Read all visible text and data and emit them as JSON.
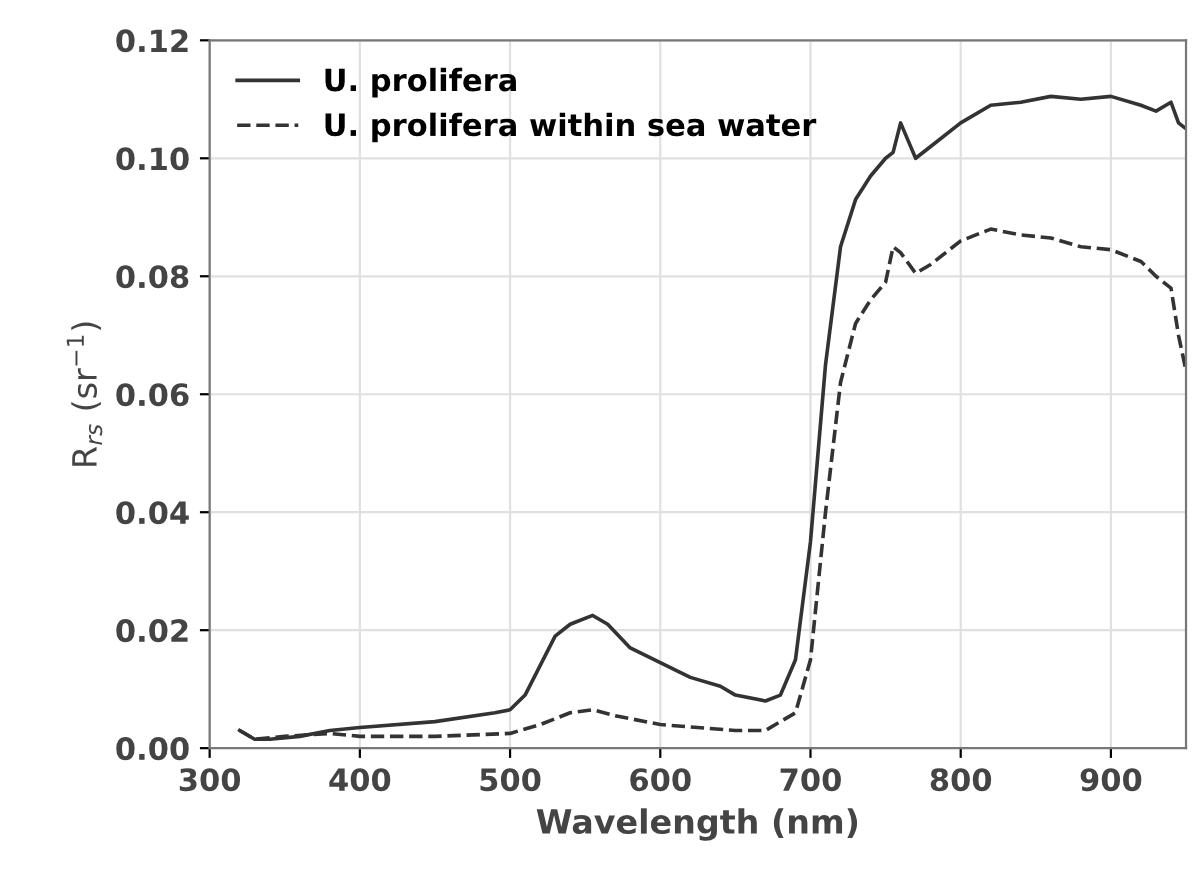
{
  "chart_data": {
    "type": "line",
    "xlabel": "Wavelength (nm)",
    "ylabel": "R$_{rs}$ (sr$^{−1}$)",
    "xlim": [
      300,
      950
    ],
    "xticks": [
      300,
      400,
      500,
      600,
      700,
      800,
      900
    ],
    "ylim": [
      0,
      0.12
    ],
    "yticks": [
      {
        "value": 0,
        "label": "0.00"
      },
      {
        "value": 0.02,
        "label": "0.02"
      },
      {
        "value": 0.04,
        "label": "0.04"
      },
      {
        "value": 0.06,
        "label": "0.06"
      },
      {
        "value": 0.08,
        "label": "0.08"
      },
      {
        "value": 0.1,
        "label": "0.10"
      },
      {
        "value": 0.12,
        "label": "0.12"
      }
    ],
    "grid": true,
    "legend": "top left",
    "series": [
      {
        "name": "U. prolifera",
        "color": "#333333",
        "line_style": "solid",
        "x": [
          320,
          330,
          340,
          360,
          380,
          400,
          450,
          490,
          500,
          510,
          520,
          530,
          540,
          555,
          565,
          580,
          600,
          620,
          640,
          650,
          670,
          680,
          690,
          700,
          710,
          720,
          730,
          740,
          750,
          755,
          760,
          765,
          770,
          780,
          800,
          820,
          840,
          860,
          880,
          900,
          920,
          930,
          940,
          945,
          950
        ],
        "values": [
          0.003,
          0.0015,
          0.0015,
          0.002,
          0.003,
          0.0035,
          0.0045,
          0.006,
          0.0065,
          0.009,
          0.014,
          0.019,
          0.021,
          0.0225,
          0.021,
          0.017,
          0.0145,
          0.012,
          0.0105,
          0.009,
          0.008,
          0.009,
          0.015,
          0.035,
          0.065,
          0.085,
          0.093,
          0.097,
          0.1,
          0.101,
          0.106,
          0.103,
          0.1,
          0.102,
          0.106,
          0.109,
          0.1095,
          0.1105,
          0.11,
          0.1105,
          0.109,
          0.108,
          0.1095,
          0.106,
          0.105
        ]
      },
      {
        "name": "U. prolifera within sea water",
        "color": "#333333",
        "line_style": "dashed",
        "x": [
          320,
          330,
          350,
          380,
          400,
          450,
          500,
          520,
          540,
          555,
          570,
          600,
          650,
          670,
          690,
          700,
          710,
          720,
          730,
          740,
          750,
          755,
          760,
          770,
          780,
          800,
          820,
          840,
          860,
          880,
          900,
          920,
          930,
          940,
          945,
          950
        ],
        "values": [
          0.003,
          0.0015,
          0.002,
          0.0025,
          0.002,
          0.002,
          0.0025,
          0.004,
          0.006,
          0.0065,
          0.0055,
          0.004,
          0.003,
          0.003,
          0.006,
          0.015,
          0.04,
          0.062,
          0.072,
          0.076,
          0.079,
          0.085,
          0.084,
          0.0805,
          0.082,
          0.086,
          0.088,
          0.087,
          0.0865,
          0.085,
          0.0845,
          0.0825,
          0.08,
          0.078,
          0.07,
          0.064
        ]
      }
    ]
  }
}
